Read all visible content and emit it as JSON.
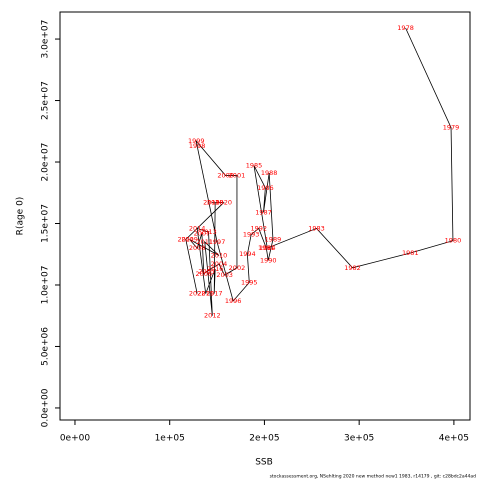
{
  "chart_data": {
    "type": "line",
    "xlabel": "SSB",
    "ylabel": "R(age 0)",
    "footnote": "stockassessment.org, NSehlting 2020 new method new1 1983, r14179 , git: c28bdc2a44ad",
    "line_color": "#000000",
    "label_color": "#ff0000",
    "point_labels": [
      "1978",
      "1979",
      "1980",
      "1981",
      "1982",
      "1983",
      "1984",
      "1985",
      "1986",
      "1987",
      "1988",
      "1989",
      "1990",
      "1991",
      "1992",
      "1993",
      "1994",
      "1995",
      "1996",
      "1997",
      "1998",
      "1999",
      "2000",
      "2001",
      "2002",
      "2003",
      "2004",
      "2005",
      "2006",
      "2007",
      "2008",
      "2009",
      "2010",
      "2011",
      "2012",
      "2013",
      "2014",
      "2015",
      "2016",
      "2017",
      "2018",
      "2019",
      "2020",
      "2021",
      "2022"
    ],
    "x": [
      349000,
      397000,
      399000,
      354000,
      293000,
      255000,
      203000,
      189000,
      201000,
      199000,
      205000,
      209000,
      204000,
      202000,
      194000,
      186000,
      182000,
      184000,
      167000,
      150000,
      129000,
      128000,
      159000,
      171000,
      171000,
      158000,
      152000,
      139000,
      136000,
      134000,
      129000,
      121000,
      152000,
      137000,
      145000,
      141000,
      129000,
      138000,
      148000,
      147000,
      148000,
      144000,
      157000,
      117000,
      129000
    ],
    "values": [
      30900000,
      22800000,
      13600000,
      12600000,
      11400000,
      14600000,
      13000000,
      19700000,
      17900000,
      15900000,
      19100000,
      13700000,
      12000000,
      13000000,
      14600000,
      14100000,
      12500000,
      10200000,
      8700000,
      13500000,
      21300000,
      21700000,
      18900000,
      18900000,
      11400000,
      10800000,
      11700000,
      11100000,
      10900000,
      14200000,
      13000000,
      13700000,
      12400000,
      13500000,
      7500000,
      14300000,
      14600000,
      9300000,
      11300000,
      9300000,
      16700000,
      16700000,
      16700000,
      13700000,
      9300000
    ],
    "xlim": [
      -15800,
      417000
    ],
    "ylim": [
      -980000,
      32200000
    ],
    "xticks": [
      {
        "value": 0,
        "label": "0e+00"
      },
      {
        "value": 100000,
        "label": "1e+05"
      },
      {
        "value": 200000,
        "label": "2e+05"
      },
      {
        "value": 300000,
        "label": "3e+05"
      },
      {
        "value": 400000,
        "label": "4e+05"
      }
    ],
    "yticks": [
      {
        "value": 0,
        "label": "0.0e+00"
      },
      {
        "value": 5000000,
        "label": "5.0e+06"
      },
      {
        "value": 10000000,
        "label": "1.0e+07"
      },
      {
        "value": 15000000,
        "label": "1.5e+07"
      },
      {
        "value": 20000000,
        "label": "2.0e+07"
      },
      {
        "value": 25000000,
        "label": "2.5e+07"
      },
      {
        "value": 30000000,
        "label": "3.0e+07"
      }
    ]
  }
}
